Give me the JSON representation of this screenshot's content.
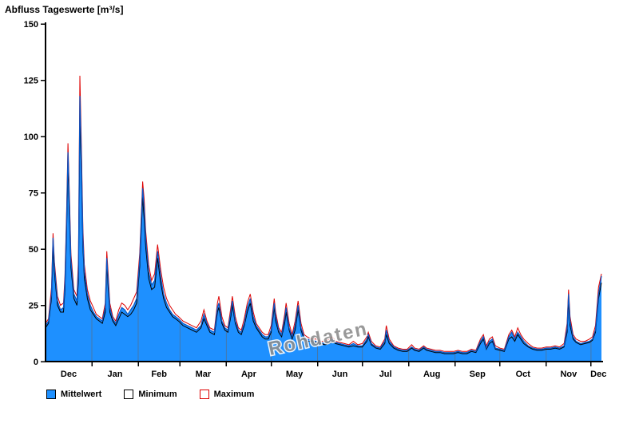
{
  "title": "Abfluss Tageswerte [m³/s]",
  "watermark": "Rohdaten",
  "legend": [
    {
      "label": "Mittelwert"
    },
    {
      "label": "Minimum"
    },
    {
      "label": "Maximum"
    }
  ],
  "colors": {
    "mean_fill": "#1E90FF",
    "mean_line": "#0757C8",
    "min_line": "#000000",
    "max_line": "#DD0000",
    "grid": "#666666",
    "axis": "#000000",
    "watermark": "#8f8f8f"
  },
  "chart_data": {
    "type": "area",
    "title": "Abfluss Tageswerte [m³/s]",
    "xlabel": "",
    "ylabel": "Abfluss Tageswerte [m³/s]",
    "ylim": [
      0,
      150
    ],
    "xlim": [
      0,
      372
    ],
    "yticks": [
      0,
      25,
      50,
      75,
      100,
      125,
      150
    ],
    "grid": "vertical month boundaries, visible inside filled area only",
    "legend_position": "bottom",
    "watermark": "Rohdaten",
    "x_unit": "day of hydrological year (Dec 1 = day 0)",
    "month_boundaries": [
      31,
      62,
      90,
      121,
      151,
      182,
      212,
      243,
      274,
      304,
      335,
      365
    ],
    "month_labels": [
      {
        "label": "Dec",
        "day": 15.5
      },
      {
        "label": "Jan",
        "day": 46.5
      },
      {
        "label": "Feb",
        "day": 76
      },
      {
        "label": "Mar",
        "day": 105.5
      },
      {
        "label": "Apr",
        "day": 136
      },
      {
        "label": "May",
        "day": 166.5
      },
      {
        "label": "Jun",
        "day": 197
      },
      {
        "label": "Jul",
        "day": 227.5
      },
      {
        "label": "Aug",
        "day": 258.5
      },
      {
        "label": "Sep",
        "day": 289
      },
      {
        "label": "Oct",
        "day": 319.5
      },
      {
        "label": "Nov",
        "day": 350
      },
      {
        "label": "Dec",
        "day": 370
      }
    ],
    "days": [
      0,
      2,
      4,
      5,
      6,
      8,
      10,
      12,
      13,
      14,
      15,
      16,
      17,
      19,
      21,
      22,
      23,
      24,
      25,
      26,
      28,
      30,
      32,
      34,
      36,
      38,
      40,
      41,
      42,
      43,
      45,
      47,
      49,
      51,
      53,
      55,
      57,
      59,
      61,
      63,
      65,
      66,
      67,
      69,
      71,
      73,
      75,
      77,
      79,
      81,
      83,
      85,
      87,
      89,
      92,
      95,
      98,
      101,
      104,
      106,
      108,
      110,
      113,
      115,
      116,
      118,
      120,
      122,
      124,
      125,
      127,
      129,
      131,
      133,
      135,
      137,
      139,
      141,
      143,
      145,
      147,
      149,
      151,
      153,
      154,
      156,
      158,
      160,
      161,
      163,
      165,
      167,
      169,
      171,
      173,
      175,
      178,
      181,
      184,
      187,
      190,
      192,
      194,
      197,
      200,
      203,
      206,
      209,
      212,
      215,
      216,
      218,
      221,
      224,
      227,
      228,
      230,
      233,
      236,
      239,
      242,
      245,
      247,
      250,
      253,
      255,
      258,
      261,
      264,
      267,
      270,
      273,
      276,
      279,
      282,
      285,
      288,
      291,
      293,
      295,
      297,
      299,
      301,
      304,
      307,
      310,
      312,
      314,
      316,
      318,
      320,
      323,
      326,
      329,
      332,
      335,
      338,
      341,
      344,
      347,
      349,
      350,
      351,
      353,
      355,
      358,
      361,
      364,
      366,
      368,
      370,
      372
    ],
    "series": [
      {
        "name": "Mittelwert",
        "style": "area",
        "color": "#1E90FF",
        "values": [
          16,
          18,
          30,
          55,
          42,
          27,
          23,
          24,
          35,
          60,
          93,
          70,
          45,
          30,
          27,
          40,
          118,
          90,
          55,
          40,
          30,
          25,
          22,
          20,
          19,
          18,
          24,
          46,
          35,
          24,
          19,
          17,
          21,
          24,
          23,
          21,
          23,
          25,
          28,
          45,
          77,
          68,
          55,
          40,
          34,
          36,
          49,
          38,
          30,
          26,
          23,
          21,
          20,
          19,
          17,
          16,
          15,
          14,
          16,
          21,
          17,
          14,
          13,
          24,
          26,
          18,
          15,
          14,
          22,
          27,
          18,
          14,
          13,
          17,
          24,
          28,
          20,
          16,
          14,
          12,
          11,
          11,
          14,
          26,
          20,
          14,
          12,
          19,
          24,
          15,
          11,
          16,
          25,
          15,
          11,
          10,
          9.5,
          9,
          8.5,
          8,
          9,
          10,
          8.5,
          8,
          7.5,
          7,
          8,
          7,
          7,
          10,
          12,
          8,
          6.5,
          6,
          9,
          14,
          9,
          6.5,
          5.5,
          5,
          5,
          6.5,
          5.5,
          5,
          6.5,
          5.5,
          5,
          4.5,
          4.5,
          4,
          4,
          4,
          4.5,
          4,
          4,
          5,
          4.5,
          9,
          11,
          6,
          9,
          10,
          6,
          5.5,
          5,
          11,
          13,
          10,
          13,
          11,
          9,
          7,
          6,
          5.5,
          5.5,
          6,
          6,
          6.5,
          6,
          7,
          15,
          30,
          18,
          11,
          9,
          8,
          8.5,
          9,
          10,
          14,
          30,
          38
        ]
      },
      {
        "name": "Minimum",
        "style": "line",
        "color": "#000000",
        "values": [
          15,
          17,
          28,
          50,
          39,
          25,
          22,
          22,
          32,
          56,
          88,
          65,
          42,
          28,
          25,
          36,
          110,
          84,
          51,
          37,
          28,
          23,
          21,
          19,
          18,
          17,
          22,
          43,
          32,
          22,
          18,
          16,
          19,
          22,
          21,
          20,
          21,
          23,
          26,
          42,
          73,
          63,
          51,
          37,
          32,
          33,
          46,
          35,
          28,
          24,
          22,
          20,
          19,
          18,
          16,
          15,
          14,
          13,
          15,
          19,
          16,
          13,
          12,
          22,
          24,
          17,
          14,
          13,
          20,
          25,
          17,
          13,
          12,
          16,
          22,
          26,
          18,
          15,
          13,
          11,
          10,
          10,
          13,
          24,
          18,
          13,
          11,
          17,
          22,
          14,
          10,
          14,
          23,
          14,
          10,
          9,
          9,
          8.5,
          8,
          7.5,
          8,
          9,
          8,
          7.5,
          7,
          6.5,
          7,
          6.5,
          6.5,
          9,
          11,
          7.5,
          6,
          5.5,
          8,
          12,
          8,
          6,
          5,
          4.5,
          4.5,
          6,
          5,
          4.5,
          6,
          5,
          4.5,
          4,
          4,
          3.5,
          3.5,
          3.5,
          4,
          3.5,
          3.5,
          4.5,
          4,
          8,
          10,
          5.5,
          8,
          9,
          5.5,
          5,
          4.5,
          10,
          11,
          9,
          12,
          10,
          8,
          6.5,
          5.5,
          5,
          5,
          5.5,
          5.5,
          6,
          5.5,
          6.5,
          13,
          27,
          16,
          10,
          8.5,
          7.5,
          8,
          8.5,
          9.5,
          13,
          28,
          35
        ]
      },
      {
        "name": "Maximum",
        "style": "line",
        "color": "#DD0000",
        "values": [
          17,
          19,
          33,
          57,
          44,
          29,
          25,
          26,
          38,
          64,
          97,
          74,
          48,
          32,
          29,
          45,
          127,
          96,
          59,
          43,
          32,
          27,
          24,
          21,
          20,
          19,
          26,
          49,
          38,
          26,
          20,
          18,
          23,
          26,
          25,
          23,
          25,
          28,
          31,
          48,
          80,
          72,
          58,
          43,
          36,
          39,
          52,
          41,
          33,
          28,
          25,
          23,
          21,
          20,
          18,
          17,
          16,
          15,
          18,
          23,
          18,
          15,
          14,
          26,
          29,
          20,
          16,
          15,
          24,
          29,
          20,
          15,
          14,
          19,
          26,
          30,
          22,
          17,
          15,
          13,
          12,
          12,
          16,
          28,
          22,
          15,
          13,
          21,
          26,
          17,
          12,
          18,
          27,
          17,
          12,
          11,
          10,
          10,
          9,
          9,
          10,
          11,
          9,
          8.5,
          8,
          7.5,
          9,
          7.5,
          8,
          11,
          13,
          9,
          7,
          6.5,
          10,
          16,
          10,
          7,
          6,
          5.5,
          5.5,
          7.5,
          6,
          5.5,
          7,
          6,
          5.5,
          5,
          5,
          4.5,
          4.5,
          4.5,
          5,
          4.5,
          4.5,
          5.5,
          5,
          10,
          12,
          7,
          10,
          11,
          7,
          6,
          5.5,
          12,
          14,
          11,
          15,
          12,
          10,
          8,
          6.5,
          6,
          6,
          6.5,
          6.5,
          7,
          6.5,
          8,
          17,
          32,
          20,
          12,
          10,
          9,
          9,
          10,
          11,
          16,
          33,
          39
        ]
      }
    ]
  }
}
